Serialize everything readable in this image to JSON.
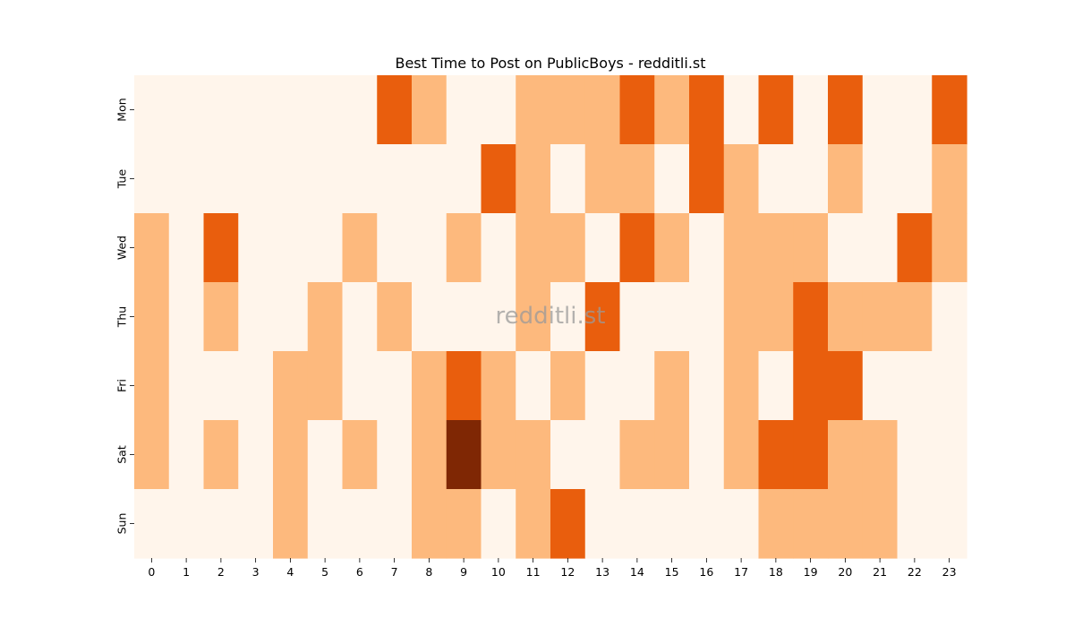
{
  "chart_data": {
    "type": "heatmap",
    "title": "Best Time to Post on PublicBoys - redditli.st",
    "xlabel": "",
    "ylabel": "",
    "x_categories": [
      "0",
      "1",
      "2",
      "3",
      "4",
      "5",
      "6",
      "7",
      "8",
      "9",
      "10",
      "11",
      "12",
      "13",
      "14",
      "15",
      "16",
      "17",
      "18",
      "19",
      "20",
      "21",
      "22",
      "23"
    ],
    "y_categories": [
      "Mon",
      "Tue",
      "Wed",
      "Thu",
      "Fri",
      "Sat",
      "Sun"
    ],
    "values": [
      [
        0,
        0,
        0,
        0,
        0,
        0,
        0,
        2,
        1,
        0,
        0,
        1,
        1,
        1,
        2,
        1,
        2,
        0,
        2,
        0,
        2,
        0,
        0,
        2
      ],
      [
        0,
        0,
        0,
        0,
        0,
        0,
        0,
        0,
        0,
        0,
        2,
        1,
        0,
        1,
        1,
        0,
        2,
        1,
        0,
        0,
        1,
        0,
        0,
        1
      ],
      [
        1,
        0,
        2,
        0,
        0,
        0,
        1,
        0,
        0,
        1,
        0,
        1,
        1,
        0,
        2,
        1,
        0,
        1,
        1,
        1,
        0,
        0,
        2,
        1
      ],
      [
        1,
        0,
        1,
        0,
        0,
        1,
        0,
        1,
        0,
        0,
        0,
        1,
        0,
        2,
        0,
        0,
        0,
        1,
        1,
        2,
        1,
        1,
        1,
        0
      ],
      [
        1,
        0,
        0,
        0,
        1,
        1,
        0,
        0,
        1,
        2,
        1,
        0,
        1,
        0,
        0,
        1,
        0,
        1,
        0,
        2,
        2,
        0,
        0,
        0
      ],
      [
        1,
        0,
        1,
        0,
        1,
        0,
        1,
        0,
        1,
        3,
        1,
        1,
        0,
        0,
        1,
        1,
        0,
        1,
        2,
        2,
        1,
        1,
        0,
        0
      ],
      [
        0,
        0,
        0,
        0,
        1,
        0,
        0,
        0,
        1,
        1,
        0,
        1,
        2,
        0,
        0,
        0,
        0,
        0,
        1,
        1,
        1,
        1,
        0,
        0
      ]
    ],
    "colormap": {
      "0": "#fff5eb",
      "1": "#fdb97d",
      "2": "#e95e0d",
      "3": "#7f2704"
    },
    "grid": false,
    "legend": "none",
    "watermark": "redditli.st"
  }
}
